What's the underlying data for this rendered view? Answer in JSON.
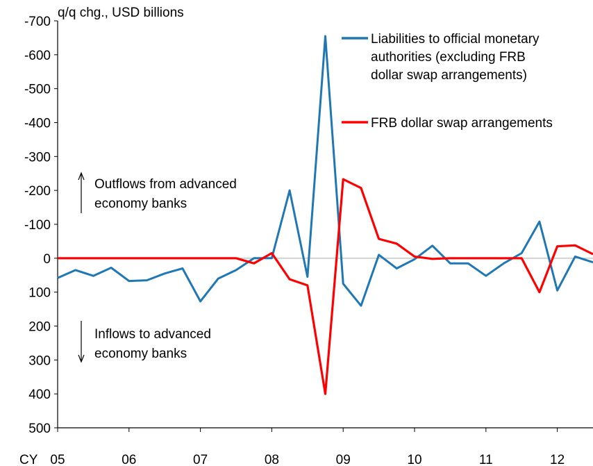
{
  "chart_data": {
    "type": "line",
    "ylabel": "q/q chg., USD billions",
    "xlabel_prefix": "CY",
    "ylim": [
      -700,
      500
    ],
    "y_inverted": true,
    "y_ticks": [
      -700,
      -600,
      -500,
      -400,
      -300,
      -200,
      -100,
      0,
      100,
      200,
      300,
      400,
      500
    ],
    "y_tick_labels": [
      "-700",
      "-600",
      "-500",
      "-400",
      "-300",
      "-200",
      "-100",
      "0",
      "100",
      "200",
      "300",
      "400",
      "500"
    ],
    "x_ticks": [
      2005,
      2006,
      2007,
      2008,
      2009,
      2010,
      2011,
      2012
    ],
    "x_tick_labels": [
      "05",
      "06",
      "07",
      "08",
      "09",
      "10",
      "11",
      "12"
    ],
    "xlim": [
      2005,
      2012.5
    ],
    "series": [
      {
        "name": "Liabilities to official monetary authorities (excluding FRB dollar swap arrangements)",
        "color": "#1f77b4",
        "x": [
          2005.0,
          2005.25,
          2005.5,
          2005.75,
          2006.0,
          2006.25,
          2006.5,
          2006.75,
          2007.0,
          2007.25,
          2007.5,
          2007.75,
          2008.0,
          2008.25,
          2008.5,
          2008.75,
          2009.0,
          2009.25,
          2009.5,
          2009.75,
          2010.0,
          2010.25,
          2010.5,
          2010.75,
          2011.0,
          2011.25,
          2011.5,
          2011.75,
          2012.0,
          2012.25,
          2012.5
        ],
        "y": [
          58,
          35,
          52,
          28,
          67,
          65,
          45,
          30,
          127,
          60,
          35,
          0,
          0,
          -200,
          55,
          -655,
          75,
          140,
          -10,
          30,
          3,
          -37,
          15,
          15,
          52,
          15,
          -15,
          -108,
          95,
          -5,
          12
        ]
      },
      {
        "name": "FRB dollar swap arrangements",
        "color": "#ff0000",
        "x": [
          2005.0,
          2005.25,
          2005.5,
          2005.75,
          2006.0,
          2006.25,
          2006.5,
          2006.75,
          2007.0,
          2007.25,
          2007.5,
          2007.75,
          2008.0,
          2008.25,
          2008.5,
          2008.75,
          2009.0,
          2009.25,
          2009.5,
          2009.75,
          2010.0,
          2010.25,
          2010.5,
          2010.75,
          2011.0,
          2011.25,
          2011.5,
          2011.75,
          2012.0,
          2012.25,
          2012.5
        ],
        "y": [
          0,
          0,
          0,
          0,
          0,
          0,
          0,
          0,
          0,
          0,
          0,
          15,
          -15,
          62,
          80,
          400,
          -233,
          -207,
          -57,
          -43,
          -5,
          2,
          0,
          0,
          0,
          0,
          0,
          100,
          -35,
          -38,
          -12
        ]
      }
    ],
    "legend": [
      {
        "lines": [
          "Liabilities to official monetary",
          "authorities (excluding FRB",
          "dollar swap arrangements)"
        ],
        "color": "#1f77b4"
      },
      {
        "lines": [
          "FRB dollar swap arrangements"
        ],
        "color": "#ff0000"
      }
    ],
    "annotations": [
      {
        "arrow": "up",
        "lines": [
          "Outflows from advanced",
          "economy banks"
        ]
      },
      {
        "arrow": "down",
        "lines": [
          "Inflows to advanced",
          "economy banks"
        ]
      }
    ]
  }
}
